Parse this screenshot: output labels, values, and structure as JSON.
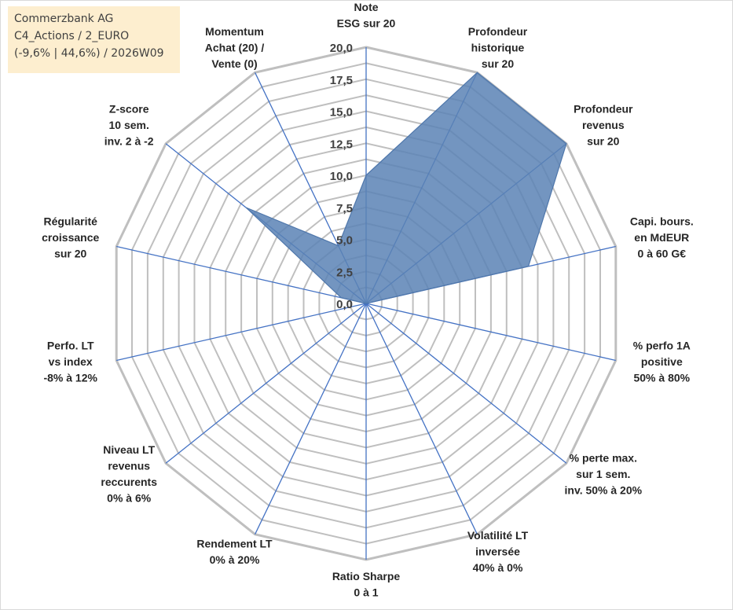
{
  "info_box": {
    "lines": [
      "Commerzbank AG",
      "C4_Actions / 2_EURO",
      "(-9,6% | 44,6%) / 2026W09"
    ]
  },
  "colors": {
    "fill": "#5b82b5",
    "stroke": "#4f77ab",
    "grid": "#bfbfbf",
    "spoke": "#4472c4",
    "info_bg": "#fdeecf"
  },
  "chart_data": {
    "type": "radar",
    "title": "",
    "rmin": 0,
    "rmax": 20,
    "tick_step": 2.5,
    "tick_labels": [
      "0,0",
      "2,5",
      "5,0",
      "7,5",
      "10,0",
      "12,5",
      "15,0",
      "17,5",
      "20,0"
    ],
    "axes": [
      {
        "label": [
          "Note",
          "ESG sur 20"
        ],
        "value": 10.0
      },
      {
        "label": [
          "Profondeur",
          "historique",
          "sur 20"
        ],
        "value": 20.0
      },
      {
        "label": [
          "Profondeur",
          "revenus",
          "sur 20"
        ],
        "value": 20.0
      },
      {
        "label": [
          "Capi. bours.",
          "en MdEUR",
          "0 à 60 G€"
        ],
        "value": 13.0
      },
      {
        "label": [
          "% perfo 1A",
          "positive",
          "50% à 80%"
        ],
        "value": 0
      },
      {
        "label": [
          "% perte max.",
          "sur 1 sem.",
          "inv. 50% à 20%"
        ],
        "value": 0
      },
      {
        "label": [
          "Volatilité LT",
          "inversée",
          "40% à 0%"
        ],
        "value": 0
      },
      {
        "label": [
          "Ratio Sharpe",
          "0 à 1"
        ],
        "value": 0
      },
      {
        "label": [
          "Rendement LT",
          "0% à 20%"
        ],
        "value": 0
      },
      {
        "label": [
          "Niveau LT",
          "revenus",
          "reccurents",
          "0% à 6%"
        ],
        "value": 0
      },
      {
        "label": [
          "Perfo. LT",
          "vs index",
          "-8% à 12%"
        ],
        "value": 0
      },
      {
        "label": [
          "Régularité",
          "croissance",
          "sur 20"
        ],
        "value": 2.0
      },
      {
        "label": [
          "Z-score",
          "10 sem.",
          "inv. 2 à -2"
        ],
        "value": 12.0
      },
      {
        "label": [
          "Momentum",
          "Achat (20) /",
          "Vente (0)"
        ],
        "value": 5.0
      }
    ]
  }
}
